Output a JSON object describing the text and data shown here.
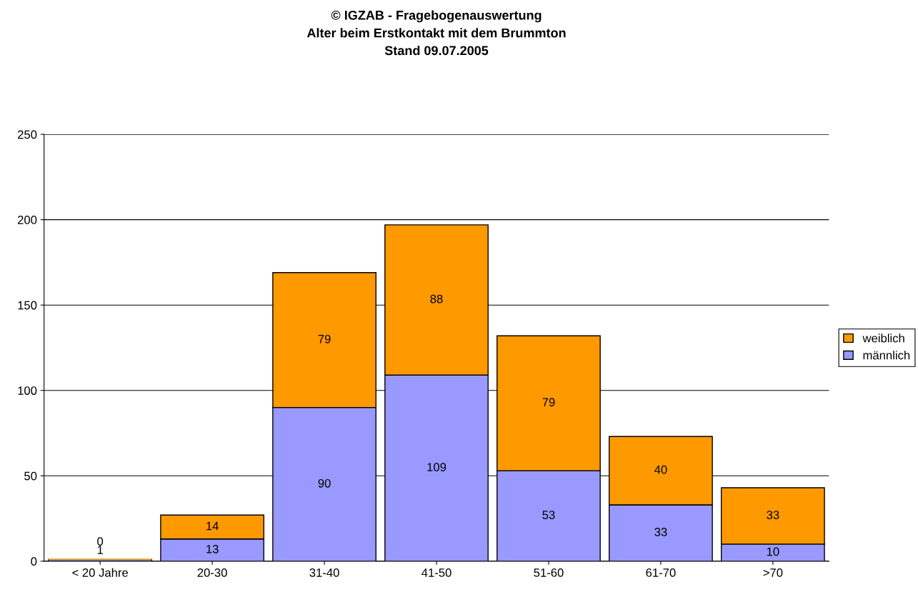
{
  "chart_data": {
    "type": "bar",
    "title": "© IGZAB - Fragebogenauswertung\nAlter beim Erstkontakt mit dem Brummton\nStand 09.07.2005",
    "categories": [
      "< 20 Jahre",
      "20-30",
      "31-40",
      "41-50",
      "51-60",
      "61-70",
      ">70"
    ],
    "stacked": true,
    "series": [
      {
        "name": "männlich",
        "color": "#9999ff",
        "values": [
          1,
          13,
          90,
          109,
          53,
          33,
          10
        ]
      },
      {
        "name": "weiblich",
        "color": "#ff9900",
        "values": [
          0,
          14,
          79,
          88,
          79,
          40,
          33
        ]
      }
    ],
    "ylim": [
      0,
      250
    ],
    "yticks": [
      0,
      50,
      100,
      150,
      200,
      250
    ],
    "grid": "y",
    "legend": "right",
    "data_labels": true
  }
}
